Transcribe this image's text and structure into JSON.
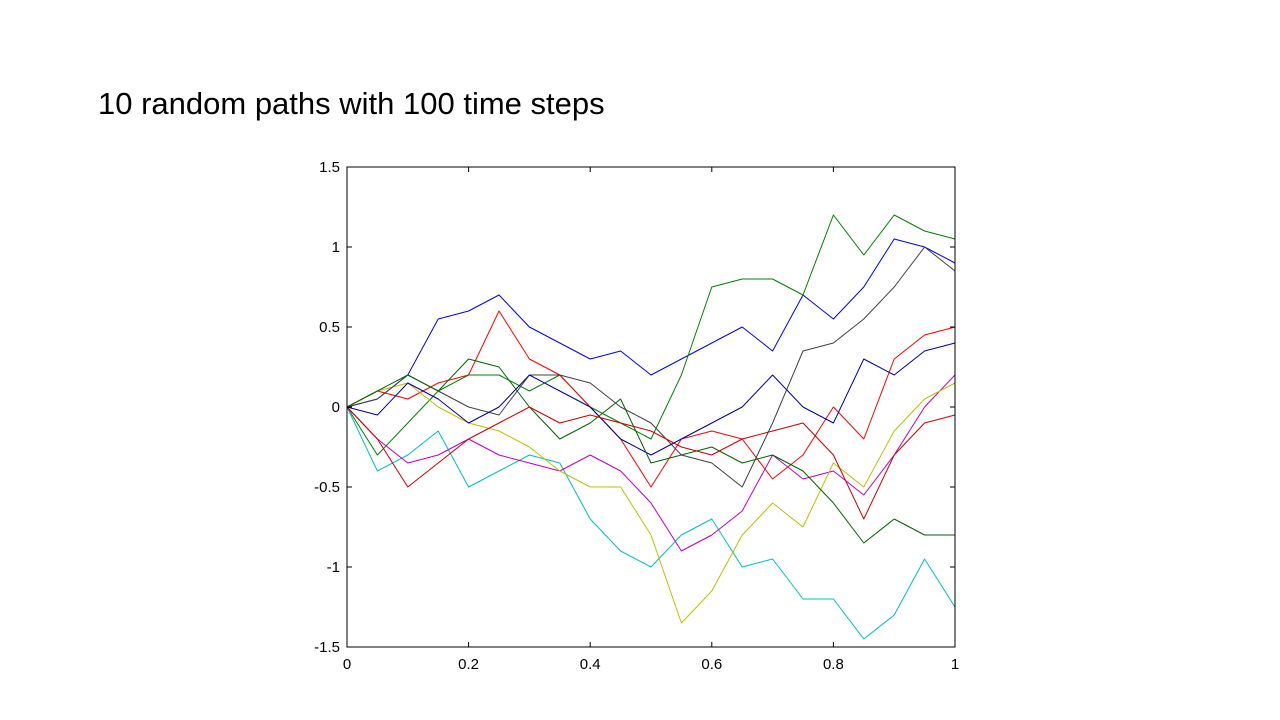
{
  "slide": {
    "title": "10 random paths with 100 time steps"
  },
  "chart_data": {
    "type": "line",
    "title": "",
    "xlabel": "",
    "ylabel": "",
    "xlim": [
      0,
      1
    ],
    "ylim": [
      -1.5,
      1.5
    ],
    "grid": false,
    "xticks": [
      0,
      0.2,
      0.4,
      0.6,
      0.8,
      1
    ],
    "yticks": [
      -1.5,
      -1,
      -0.5,
      0,
      0.5,
      1,
      1.5
    ],
    "xtick_labels": [
      "0",
      "0.2",
      "0.4",
      "0.6",
      "0.8",
      "1"
    ],
    "ytick_labels": [
      "-1.5",
      "-1",
      "-0.5",
      "0",
      "0.5",
      "1",
      "1.5"
    ],
    "colors": [
      "#0000ff",
      "#008000",
      "#ff0000",
      "#00bfbf",
      "#bf00bf",
      "#bfbf00",
      "#404040",
      "#00009f",
      "#006400",
      "#cc0000"
    ],
    "x": [
      0,
      0.05,
      0.1,
      0.15,
      0.2,
      0.25,
      0.3,
      0.35,
      0.4,
      0.45,
      0.5,
      0.55,
      0.6,
      0.65,
      0.7,
      0.75,
      0.8,
      0.85,
      0.9,
      0.95,
      1.0
    ],
    "series": [
      {
        "color": "#0000ff",
        "values": [
          0,
          0.05,
          0.2,
          0.55,
          0.6,
          0.7,
          0.5,
          0.4,
          0.3,
          0.35,
          0.2,
          0.3,
          0.4,
          0.5,
          0.35,
          0.7,
          0.55,
          0.75,
          1.05,
          1.0,
          0.9
        ]
      },
      {
        "color": "#008000",
        "values": [
          0,
          -0.3,
          -0.1,
          0.1,
          0.2,
          0.2,
          0.1,
          0.2,
          0.0,
          -0.1,
          -0.2,
          0.2,
          0.75,
          0.8,
          0.8,
          0.7,
          1.2,
          0.95,
          1.2,
          1.1,
          1.05
        ]
      },
      {
        "color": "#ff0000",
        "values": [
          0,
          0.1,
          0.05,
          0.15,
          0.2,
          0.6,
          0.3,
          0.2,
          0.0,
          -0.2,
          -0.5,
          -0.2,
          -0.15,
          -0.2,
          -0.45,
          -0.3,
          0.0,
          -0.2,
          0.3,
          0.45,
          0.5
        ]
      },
      {
        "color": "#00bfbf",
        "values": [
          0,
          -0.4,
          -0.3,
          -0.15,
          -0.5,
          -0.4,
          -0.3,
          -0.35,
          -0.7,
          -0.9,
          -1.0,
          -0.8,
          -0.7,
          -1.0,
          -0.95,
          -1.2,
          -1.2,
          -1.45,
          -1.3,
          -0.95,
          -1.25
        ]
      },
      {
        "color": "#bf00bf",
        "values": [
          0,
          -0.2,
          -0.35,
          -0.3,
          -0.2,
          -0.3,
          -0.35,
          -0.4,
          -0.3,
          -0.4,
          -0.6,
          -0.9,
          -0.8,
          -0.65,
          -0.3,
          -0.45,
          -0.4,
          -0.55,
          -0.3,
          0.0,
          0.2
        ]
      },
      {
        "color": "#bfbf00",
        "values": [
          0,
          0.1,
          0.15,
          0.0,
          -0.1,
          -0.15,
          -0.25,
          -0.4,
          -0.5,
          -0.5,
          -0.8,
          -1.35,
          -1.15,
          -0.8,
          -0.6,
          -0.75,
          -0.35,
          -0.5,
          -0.15,
          0.05,
          0.15
        ]
      },
      {
        "color": "#404040",
        "values": [
          0,
          0.05,
          0.2,
          0.1,
          0.0,
          -0.05,
          0.2,
          0.2,
          0.15,
          0.0,
          -0.1,
          -0.3,
          -0.35,
          -0.5,
          -0.1,
          0.35,
          0.4,
          0.55,
          0.75,
          1.0,
          0.85
        ]
      },
      {
        "color": "#00009f",
        "values": [
          0,
          -0.05,
          0.15,
          0.05,
          -0.1,
          0.0,
          0.2,
          0.1,
          0.0,
          -0.2,
          -0.3,
          -0.2,
          -0.1,
          0.0,
          0.2,
          0.0,
          -0.1,
          0.3,
          0.2,
          0.35,
          0.4
        ]
      },
      {
        "color": "#006400",
        "values": [
          0,
          0.1,
          0.2,
          0.1,
          0.3,
          0.25,
          0.0,
          -0.2,
          -0.1,
          0.05,
          -0.35,
          -0.3,
          -0.25,
          -0.35,
          -0.3,
          -0.4,
          -0.6,
          -0.85,
          -0.7,
          -0.8,
          -0.8
        ]
      },
      {
        "color": "#cc0000",
        "values": [
          0,
          -0.2,
          -0.5,
          -0.35,
          -0.2,
          -0.1,
          0.0,
          -0.1,
          -0.05,
          -0.1,
          -0.15,
          -0.25,
          -0.3,
          -0.2,
          -0.15,
          -0.1,
          -0.3,
          -0.7,
          -0.3,
          -0.1,
          -0.05
        ]
      }
    ]
  }
}
